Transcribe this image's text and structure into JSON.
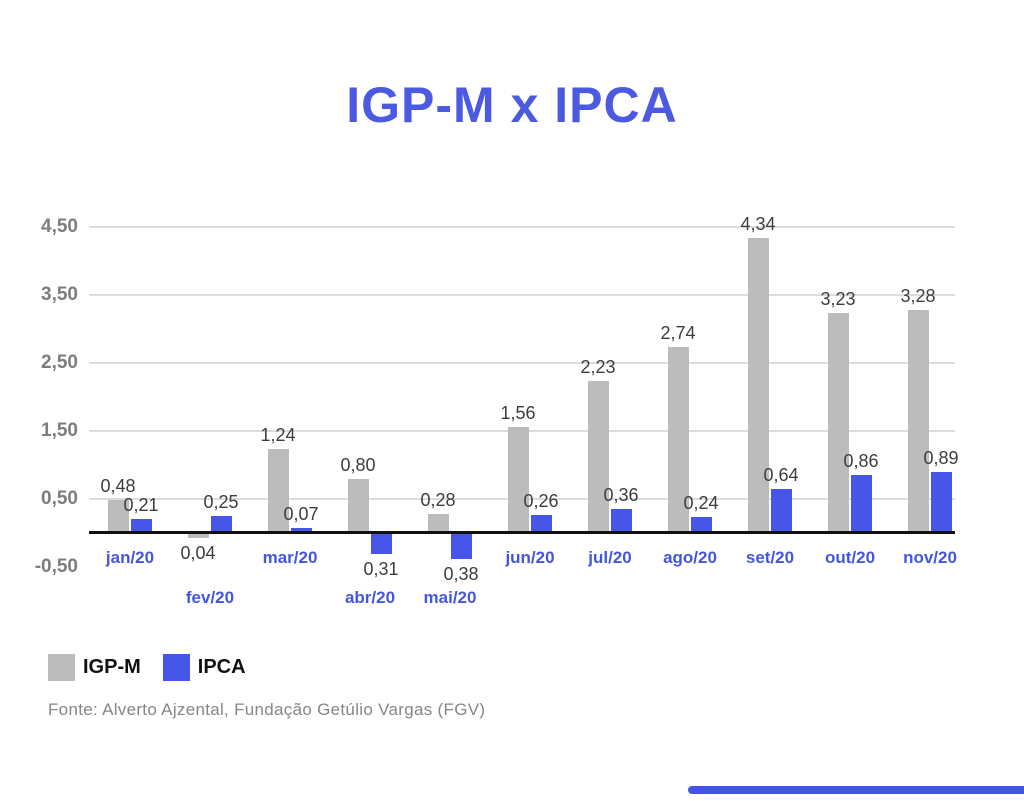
{
  "title": "IGP-M x IPCA",
  "chart_data": {
    "type": "bar",
    "title": "IGP-M x IPCA",
    "categories": [
      "jan/20",
      "fev/20",
      "mar/20",
      "abr/20",
      "mai/20",
      "jun/20",
      "jul/20",
      "ago/20",
      "set/20",
      "out/20",
      "nov/20"
    ],
    "series": [
      {
        "name": "IGP-M",
        "color": "#bcbcbc",
        "values": [
          0.48,
          -0.04,
          1.24,
          0.8,
          0.28,
          1.56,
          2.23,
          2.74,
          4.34,
          3.23,
          3.28
        ],
        "value_labels": [
          "0,48",
          "0,04",
          "1,24",
          "0,80",
          "0,28",
          "1,56",
          "2,23",
          "2,74",
          "4,34",
          "3,23",
          "3,28"
        ]
      },
      {
        "name": "IPCA",
        "color": "#4656e8",
        "values": [
          0.21,
          0.25,
          0.07,
          -0.31,
          -0.38,
          0.26,
          0.36,
          0.24,
          0.64,
          0.86,
          0.89
        ],
        "value_labels": [
          "0,21",
          "0,25",
          "0,07",
          "0,31",
          "0,38",
          "0,26",
          "0,36",
          "0,24",
          "0,64",
          "0,86",
          "0,89"
        ]
      }
    ],
    "y_ticks": [
      {
        "label": "4,50",
        "value": 4.5
      },
      {
        "label": "3,50",
        "value": 3.5
      },
      {
        "label": "2,50",
        "value": 2.5
      },
      {
        "label": "1,50",
        "value": 1.5
      },
      {
        "label": "0,50",
        "value": 0.5
      },
      {
        "label": "-0,50",
        "value": -0.5
      }
    ],
    "ylim": [
      -0.5,
      4.5
    ],
    "grid": true,
    "legend_position": "bottom-left"
  },
  "legend": {
    "items": [
      {
        "label": "IGP-M",
        "color": "#bcbcbc"
      },
      {
        "label": "IPCA",
        "color": "#4656e8"
      }
    ]
  },
  "source": "Fonte: Alverto Ajzental, Fundação Getúlio Vargas (FGV)",
  "colors": {
    "title": "#4c5ae1",
    "month_label": "#4456e0",
    "tick_label": "#7d7d7d",
    "value_label": "#3d3d3d",
    "gridline": "#dcdcdc",
    "axis": "#111111",
    "source_text": "#868686",
    "accent_bar": "#4353e8"
  }
}
